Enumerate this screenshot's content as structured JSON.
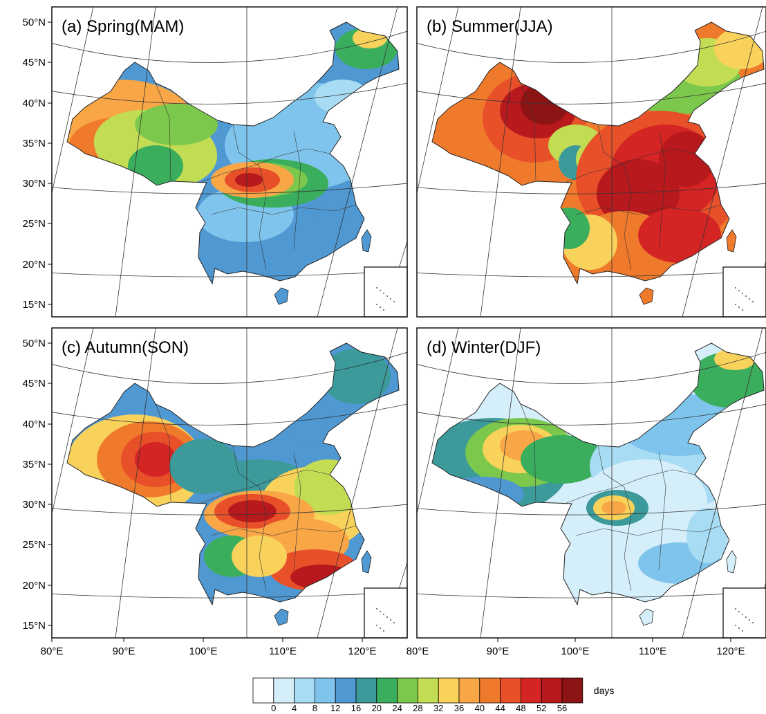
{
  "panels": [
    {
      "title": "(a) Spring(MAM)",
      "scheme": "spring"
    },
    {
      "title": "(b) Summer(JJA)",
      "scheme": "summer"
    },
    {
      "title": "(c) Autumn(SON)",
      "scheme": "autumn"
    },
    {
      "title": "(d) Winter(DJF)",
      "scheme": "winter"
    }
  ],
  "lat_labels": [
    "50°N",
    "45°N",
    "40°N",
    "35°N",
    "30°N",
    "25°N",
    "20°N",
    "15°N"
  ],
  "lon_labels": [
    "80°E",
    "90°E",
    "100°E",
    "110°E",
    "120°E"
  ],
  "colorbar": {
    "unit": "days",
    "tick_labels": [
      "0",
      "4",
      "8",
      "12",
      "16",
      "20",
      "24",
      "28",
      "32",
      "36",
      "40",
      "44",
      "48",
      "52",
      "56"
    ],
    "colors": [
      "#ffffff",
      "#d4eefa",
      "#a8dcf4",
      "#7fc4ec",
      "#4f98d2",
      "#3c9a9a",
      "#3aae5c",
      "#7cc84c",
      "#c2dc54",
      "#f8d25a",
      "#f8a646",
      "#f07a2c",
      "#e8502a",
      "#d42424",
      "#b8191c",
      "#8c1414"
    ]
  }
}
